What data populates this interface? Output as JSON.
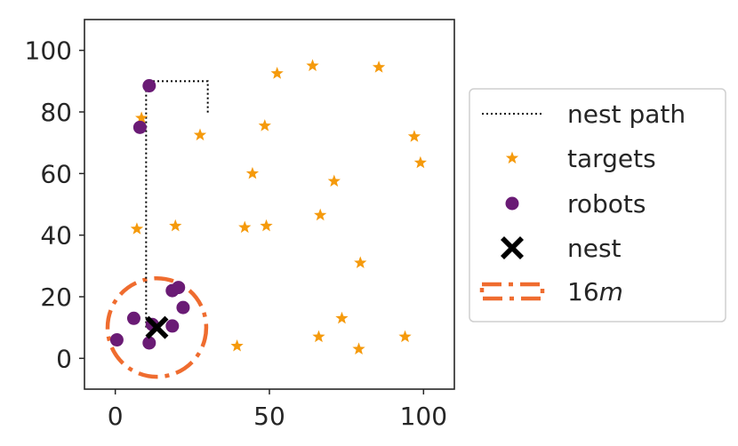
{
  "chart_data": {
    "type": "scatter",
    "xlim": [
      -10,
      110
    ],
    "ylim": [
      -10,
      110
    ],
    "xticks": [
      0,
      50,
      100
    ],
    "yticks": [
      0,
      20,
      40,
      60,
      80,
      100
    ],
    "xtick_labels": [
      "0",
      "50",
      "100"
    ],
    "ytick_labels": [
      "0",
      "20",
      "40",
      "60",
      "80",
      "100"
    ],
    "grid": false,
    "legend_position": "outside-right",
    "colors": {
      "targets": "#f59a0c",
      "robots": "#6a1b75",
      "nest": "#000000",
      "radius": "#ef6c2f",
      "path": "#000000"
    },
    "series": [
      {
        "name": "nest path",
        "kind": "line",
        "points": [
          [
            10,
            10
          ],
          [
            10,
            90
          ],
          [
            30,
            90
          ],
          [
            30,
            79
          ]
        ]
      },
      {
        "name": "targets",
        "kind": "star",
        "points": [
          [
            8.5,
            78
          ],
          [
            27.5,
            72.5
          ],
          [
            52.5,
            92.5
          ],
          [
            64,
            95
          ],
          [
            85.5,
            94.5
          ],
          [
            48.5,
            75.5
          ],
          [
            97,
            72
          ],
          [
            99,
            63.5
          ],
          [
            44.5,
            60
          ],
          [
            71,
            57.5
          ],
          [
            66.5,
            46.5
          ],
          [
            7,
            42
          ],
          [
            19.5,
            43
          ],
          [
            42,
            42.5
          ],
          [
            49,
            43
          ],
          [
            79.5,
            31
          ],
          [
            73.5,
            13
          ],
          [
            66,
            7
          ],
          [
            94,
            7
          ],
          [
            39.5,
            4
          ],
          [
            79,
            3
          ]
        ]
      },
      {
        "name": "robots",
        "kind": "circle",
        "points": [
          [
            11,
            88.5
          ],
          [
            8,
            75
          ],
          [
            18.5,
            22
          ],
          [
            20.5,
            23
          ],
          [
            22,
            16.5
          ],
          [
            6,
            13
          ],
          [
            12,
            11
          ],
          [
            18.5,
            10.5
          ],
          [
            0.5,
            6
          ],
          [
            11,
            5
          ]
        ]
      },
      {
        "name": "nest",
        "kind": "x",
        "points": [
          [
            13.5,
            10
          ]
        ]
      },
      {
        "name": "16m",
        "kind": "circle-dashdot",
        "center": [
          13.5,
          10
        ],
        "radius": 16
      }
    ],
    "legend": [
      {
        "label": "nest path",
        "kind": "line"
      },
      {
        "label": "targets",
        "kind": "star"
      },
      {
        "label": "robots",
        "kind": "circle"
      },
      {
        "label": "nest",
        "kind": "x"
      },
      {
        "label": "16",
        "label_unit": "m",
        "kind": "circle-dashdot"
      }
    ]
  }
}
